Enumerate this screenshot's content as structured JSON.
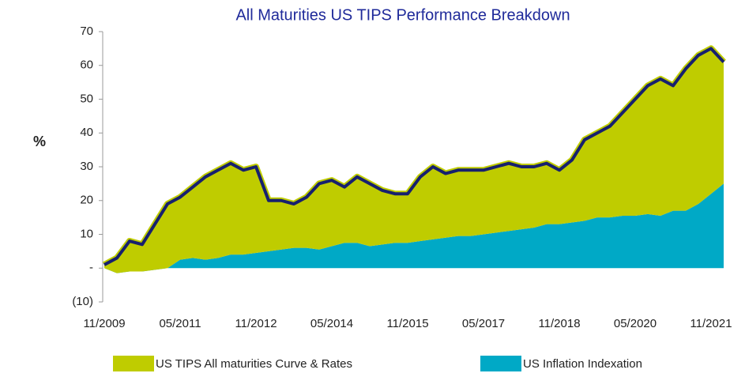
{
  "chart_data": {
    "type": "stacked_area",
    "title": "All Maturities US TIPS Performance Breakdown",
    "y_label": "%",
    "categories": [
      "11/2009",
      null,
      null,
      null,
      null,
      null,
      "05/2011",
      null,
      null,
      null,
      null,
      null,
      "11/2012",
      null,
      null,
      null,
      null,
      null,
      "05/2014",
      null,
      null,
      null,
      null,
      null,
      "11/2015",
      null,
      null,
      null,
      null,
      null,
      "05/2017",
      null,
      null,
      null,
      null,
      null,
      "11/2018",
      null,
      null,
      null,
      null,
      null,
      "05/2020",
      null,
      null,
      null,
      null,
      null,
      "11/2021",
      null
    ],
    "series": [
      {
        "name": "US Inflation Indexation",
        "color": "#00a9c6",
        "values": [
          0,
          -1.5,
          -1,
          -1,
          -0.5,
          0,
          2.5,
          3,
          2.5,
          3,
          4,
          4,
          4.5,
          5,
          5.5,
          6,
          6,
          5.5,
          6.5,
          7.5,
          7.5,
          6.5,
          7,
          7.5,
          7.5,
          8,
          8.5,
          9,
          9.5,
          9.5,
          10,
          10.5,
          11,
          11.5,
          12,
          13,
          13,
          13.5,
          14,
          15,
          15,
          15.5,
          15.5,
          16,
          15.5,
          17,
          17,
          19,
          22,
          25
        ]
      },
      {
        "name": "US TIPS All maturities Curve & Rates",
        "color": "#bfcc00",
        "values": [
          1,
          4.5,
          9,
          8,
          13.5,
          19,
          18.5,
          21,
          24.5,
          26,
          27,
          25,
          25.5,
          15,
          14.5,
          13,
          15,
          19.5,
          19.5,
          16.5,
          19.5,
          18.5,
          16,
          14.5,
          14.5,
          19,
          21.5,
          19,
          19.5,
          19.5,
          19,
          19.5,
          20,
          18.5,
          18,
          18,
          16,
          18.5,
          24,
          25,
          27,
          30.5,
          34.5,
          38,
          40.5,
          37,
          42,
          44,
          43,
          36
        ]
      }
    ],
    "total_line_color": "#17206e",
    "ylim": [
      -10,
      70
    ],
    "yticks": [
      {
        "value": -10,
        "label": "(10)"
      },
      {
        "value": 0,
        "label": "-"
      },
      10,
      20,
      30,
      40,
      50,
      60,
      70
    ]
  }
}
